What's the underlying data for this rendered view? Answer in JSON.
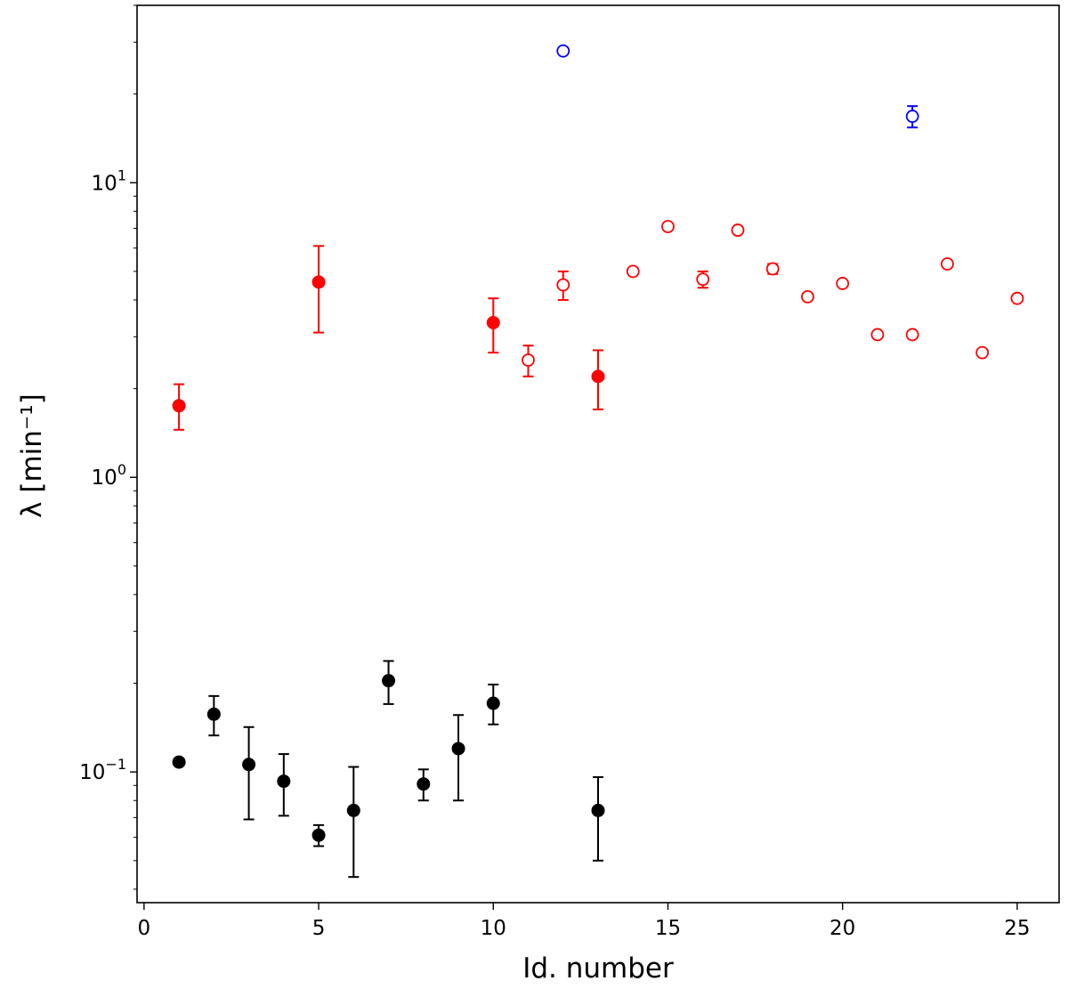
{
  "chart_data": {
    "type": "scatter",
    "title": "",
    "xlabel": "Id. number",
    "ylabel": "λ [min⁻¹]",
    "xlim": [
      -0.2,
      26.2
    ],
    "ylim": [
      0.036,
      40
    ],
    "yscale": "log",
    "grid": false,
    "legend": "none",
    "x_ticks": [
      {
        "value": 0,
        "label": "0"
      },
      {
        "value": 5,
        "label": "5"
      },
      {
        "value": 10,
        "label": "10"
      },
      {
        "value": 15,
        "label": "15"
      },
      {
        "value": 20,
        "label": "20"
      },
      {
        "value": 25,
        "label": "25"
      }
    ],
    "y_ticks": [
      {
        "value": 0.1,
        "base": "10",
        "exp": "−1"
      },
      {
        "value": 1,
        "base": "10",
        "exp": "0"
      },
      {
        "value": 10,
        "base": "10",
        "exp": "1"
      }
    ],
    "series": [
      {
        "marker": "filled-circle",
        "color": "#000000",
        "points": [
          {
            "x": 1,
            "y": 0.108,
            "lo": 0.108,
            "hi": 0.108
          },
          {
            "x": 2,
            "y": 0.157,
            "lo": 0.133,
            "hi": 0.181
          },
          {
            "x": 3,
            "y": 0.106,
            "lo": 0.069,
            "hi": 0.142
          },
          {
            "x": 4,
            "y": 0.093,
            "lo": 0.071,
            "hi": 0.115
          },
          {
            "x": 5,
            "y": 0.061,
            "lo": 0.056,
            "hi": 0.066
          },
          {
            "x": 6,
            "y": 0.074,
            "lo": 0.044,
            "hi": 0.104
          },
          {
            "x": 7,
            "y": 0.204,
            "lo": 0.17,
            "hi": 0.238
          },
          {
            "x": 8,
            "y": 0.091,
            "lo": 0.08,
            "hi": 0.102
          },
          {
            "x": 9,
            "y": 0.12,
            "lo": 0.08,
            "hi": 0.156
          },
          {
            "x": 10,
            "y": 0.171,
            "lo": 0.145,
            "hi": 0.198
          },
          {
            "x": 13,
            "y": 0.074,
            "lo": 0.05,
            "hi": 0.096
          }
        ]
      },
      {
        "marker": "filled-circle",
        "color": "#ff0000",
        "points": [
          {
            "x": 1,
            "y": 1.75,
            "lo": 1.45,
            "hi": 2.07
          },
          {
            "x": 5,
            "y": 4.6,
            "lo": 3.1,
            "hi": 6.1
          },
          {
            "x": 10,
            "y": 3.35,
            "lo": 2.65,
            "hi": 4.05
          },
          {
            "x": 13,
            "y": 2.2,
            "lo": 1.7,
            "hi": 2.7
          }
        ]
      },
      {
        "marker": "open-circle",
        "color": "#ff0000",
        "points": [
          {
            "x": 11,
            "y": 2.5,
            "lo": 2.2,
            "hi": 2.8
          },
          {
            "x": 12,
            "y": 4.5,
            "lo": 4.0,
            "hi": 5.0
          },
          {
            "x": 14,
            "y": 5.0,
            "lo": 5.0,
            "hi": 5.0
          },
          {
            "x": 15,
            "y": 7.1,
            "lo": 7.1,
            "hi": 7.1
          },
          {
            "x": 16,
            "y": 4.7,
            "lo": 4.4,
            "hi": 5.0
          },
          {
            "x": 17,
            "y": 6.9,
            "lo": 6.9,
            "hi": 6.9
          },
          {
            "x": 18,
            "y": 5.1,
            "lo": 4.9,
            "hi": 5.3
          },
          {
            "x": 19,
            "y": 4.1,
            "lo": 4.1,
            "hi": 4.1
          },
          {
            "x": 20,
            "y": 4.55,
            "lo": 4.55,
            "hi": 4.55
          },
          {
            "x": 21,
            "y": 3.05,
            "lo": 3.05,
            "hi": 3.05
          },
          {
            "x": 22,
            "y": 3.05,
            "lo": 3.05,
            "hi": 3.05
          },
          {
            "x": 23,
            "y": 5.3,
            "lo": 5.3,
            "hi": 5.3
          },
          {
            "x": 24,
            "y": 2.65,
            "lo": 2.65,
            "hi": 2.65
          },
          {
            "x": 25,
            "y": 4.05,
            "lo": 4.05,
            "hi": 4.05
          }
        ]
      },
      {
        "marker": "open-circle",
        "color": "#0000ff",
        "points": [
          {
            "x": 12,
            "y": 28.0,
            "lo": 28.0,
            "hi": 28.0
          },
          {
            "x": 22,
            "y": 16.8,
            "lo": 15.4,
            "hi": 18.2
          }
        ]
      }
    ]
  }
}
